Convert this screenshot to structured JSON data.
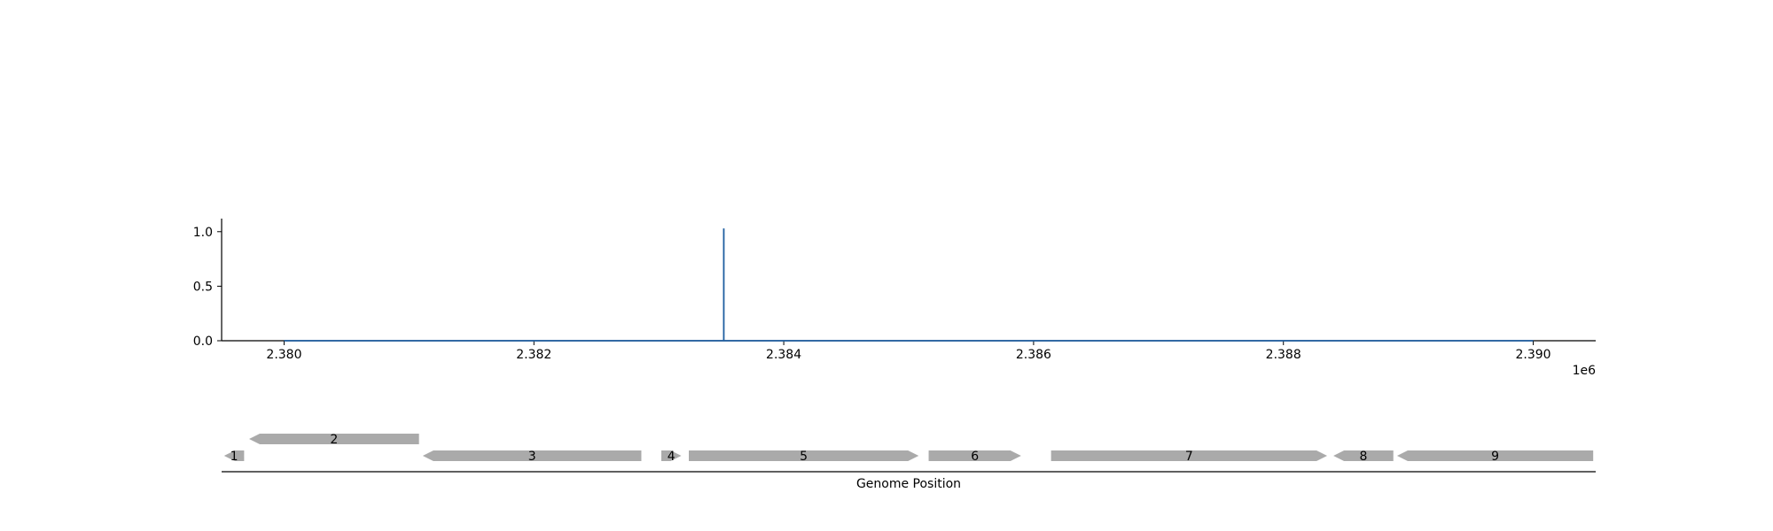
{
  "chart_data": [
    {
      "type": "line",
      "title": "",
      "xlabel": "",
      "ylabel": "",
      "x_offset_label": "1e6",
      "xlim": [
        2.3795,
        2.3905
      ],
      "ylim": [
        0.0,
        1.12
      ],
      "xticks": [
        2.38,
        2.382,
        2.384,
        2.386,
        2.388,
        2.39
      ],
      "xtick_labels": [
        "2.380",
        "2.382",
        "2.384",
        "2.386",
        "2.388",
        "2.390"
      ],
      "yticks": [
        0.0,
        0.5,
        1.0
      ],
      "ytick_labels": [
        "0.0",
        "0.5",
        "1.0"
      ],
      "grid": false,
      "color": "#1f5fa0",
      "series": [
        {
          "x": [
            2.38,
            2.38352,
            2.38352,
            2.38352,
            2.39
          ],
          "y": [
            0.0,
            0.0,
            1.03,
            0.0,
            0.0
          ]
        }
      ]
    },
    {
      "type": "gene-track",
      "xlabel": "Genome Position",
      "xlim": [
        2.3795,
        2.3905
      ],
      "color": "#aaaaaa",
      "genes": [
        {
          "label": "1",
          "start": 2.37952,
          "end": 2.37968,
          "strand": "-",
          "row": 0
        },
        {
          "label": "2",
          "start": 2.37972,
          "end": 2.38108,
          "strand": "-",
          "row": 1
        },
        {
          "label": "3",
          "start": 2.38111,
          "end": 2.38286,
          "strand": "-",
          "row": 0
        },
        {
          "label": "4",
          "start": 2.38302,
          "end": 2.38318,
          "strand": "+",
          "row": 0
        },
        {
          "label": "5",
          "start": 2.38324,
          "end": 2.38508,
          "strand": "+",
          "row": 0
        },
        {
          "label": "6",
          "start": 2.38516,
          "end": 2.3859,
          "strand": "+",
          "row": 0
        },
        {
          "label": "7",
          "start": 2.38614,
          "end": 2.38835,
          "strand": "+",
          "row": 0
        },
        {
          "label": "8",
          "start": 2.3884,
          "end": 2.38888,
          "strand": "-",
          "row": 0
        },
        {
          "label": "9",
          "start": 2.38891,
          "end": 2.39048,
          "strand": "-",
          "row": 0
        }
      ]
    }
  ]
}
